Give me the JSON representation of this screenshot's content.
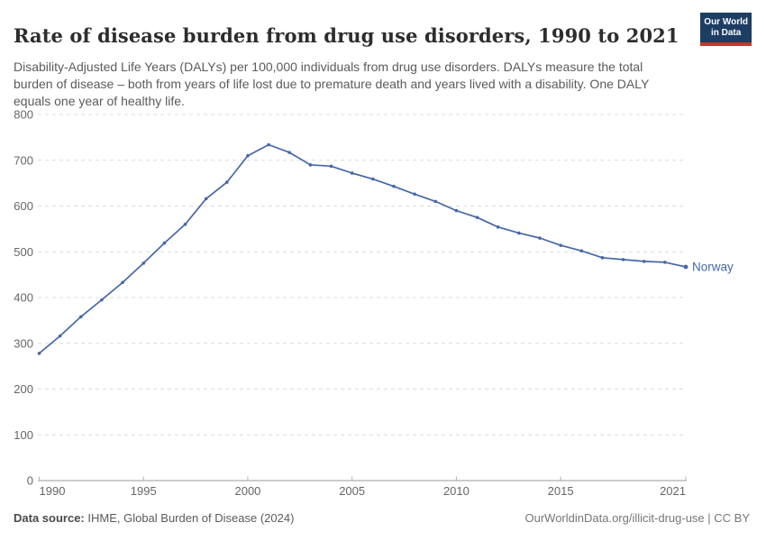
{
  "header": {
    "title": "Rate of disease burden from drug use disorders, 1990 to 2021",
    "subtitle": "Disability-Adjusted Life Years (DALYs) per 100,000 individuals from drug use disorders. DALYs measure the total burden of disease – both from years of life lost due to premature death and years lived with a disability. One DALY equals one year of healthy life.",
    "logo": {
      "line1": "Our World",
      "line2": "in Data",
      "bg_color": "#1d3d63",
      "accent_color": "#c0392b"
    }
  },
  "chart_data": {
    "type": "line",
    "title": "Rate of disease burden from drug use disorders, 1990 to 2021",
    "xlabel": "",
    "ylabel": "DALYs per 100,000 individuals",
    "xlim": [
      1990,
      2021
    ],
    "ylim": [
      0,
      800
    ],
    "x_ticks": [
      1990,
      1995,
      2000,
      2005,
      2010,
      2015,
      2021
    ],
    "y_ticks": [
      0,
      100,
      200,
      300,
      400,
      500,
      600,
      700,
      800
    ],
    "grid": "horizontal-dashed",
    "legend_position": "end-of-line-label",
    "colors": {
      "line": "#4668a8",
      "grid": "#dcdcdc",
      "axis": "#9a9a9a",
      "tick": "#b3b3b3",
      "tick_label": "#666666"
    },
    "x": [
      1990,
      1991,
      1992,
      1993,
      1994,
      1995,
      1996,
      1997,
      1998,
      1999,
      2000,
      2001,
      2002,
      2003,
      2004,
      2005,
      2006,
      2007,
      2008,
      2009,
      2010,
      2011,
      2012,
      2013,
      2014,
      2015,
      2016,
      2017,
      2018,
      2019,
      2020,
      2021
    ],
    "series": [
      {
        "name": "Norway",
        "color": "#4668a8",
        "values": [
          278,
          316,
          358,
          395,
          433,
          475,
          519,
          560,
          616,
          652,
          710,
          734,
          717,
          690,
          687,
          672,
          659,
          643,
          626,
          610,
          590,
          575,
          554,
          541,
          530,
          514,
          502,
          487,
          483,
          479,
          477,
          467
        ]
      }
    ]
  },
  "footer": {
    "source_label": "Data source:",
    "source_text": " IHME, Global Burden of Disease (2024)",
    "credit": "OurWorldinData.org/illicit-drug-use | CC BY"
  }
}
